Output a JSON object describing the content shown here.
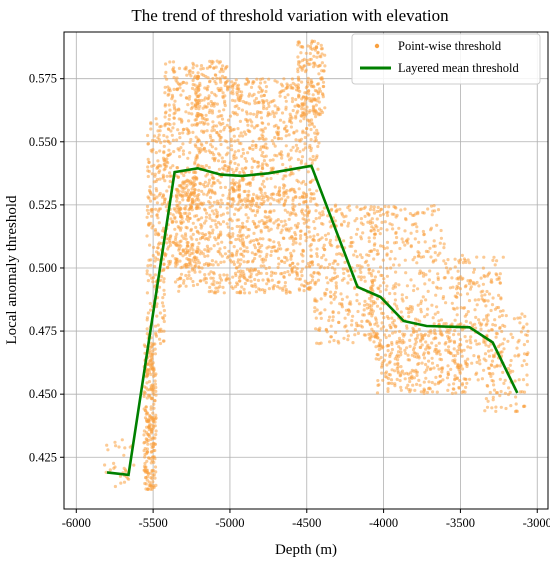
{
  "chart_data": {
    "type": "scatter",
    "title": "The trend of threshold variation with elevation",
    "xlabel": "Depth (m)",
    "ylabel": "Local anomaly threshold",
    "xlim": [
      -6080,
      -2930
    ],
    "ylim": [
      0.4045,
      0.5935
    ],
    "x_ticks": [
      -6000,
      -5500,
      -5000,
      -4500,
      -4000,
      -3500,
      -3000
    ],
    "x_tick_labels": [
      "-6000",
      "-5500",
      "-5000",
      "-4500",
      "-4000",
      "-3500",
      "-3000"
    ],
    "y_ticks": [
      0.425,
      0.45,
      0.475,
      0.5,
      0.525,
      0.55,
      0.575
    ],
    "y_tick_labels": [
      "0.425",
      "0.450",
      "0.475",
      "0.500",
      "0.525",
      "0.550",
      "0.575"
    ],
    "grid": true,
    "legend_position": "top-right",
    "colors": {
      "scatter": "#f9a03f",
      "line": "#008000",
      "grid": "#b0b0b0"
    },
    "series": [
      {
        "name": "Layered mean threshold",
        "kind": "line",
        "x": [
          -5800,
          -5660,
          -5360,
          -5210,
          -5060,
          -4920,
          -4750,
          -4470,
          -4170,
          -4020,
          -3870,
          -3720,
          -3440,
          -3290,
          -3130
        ],
        "y": [
          0.419,
          0.418,
          0.538,
          0.5395,
          0.537,
          0.5365,
          0.5375,
          0.5405,
          0.4925,
          0.4885,
          0.479,
          0.477,
          0.4765,
          0.4705,
          0.4505
        ]
      },
      {
        "name": "Point-wise threshold",
        "kind": "scatter",
        "clusters": [
          {
            "x": [
              -5840,
              -5620
            ],
            "y": [
              0.413,
              0.432
            ],
            "n": 30
          },
          {
            "x": [
              -5560,
              -5480
            ],
            "y": [
              0.412,
              0.47
            ],
            "n": 260
          },
          {
            "x": [
              -5540,
              -5420
            ],
            "y": [
              0.47,
              0.56
            ],
            "n": 220
          },
          {
            "x": [
              -5430,
              -5200
            ],
            "y": [
              0.5,
              0.582
            ],
            "n": 380
          },
          {
            "x": [
              -5230,
              -5010
            ],
            "y": [
              0.535,
              0.582
            ],
            "n": 250
          },
          {
            "x": [
              -5360,
              -4920
            ],
            "y": [
              0.49,
              0.535
            ],
            "n": 420
          },
          {
            "x": [
              -5010,
              -4780
            ],
            "y": [
              0.525,
              0.575
            ],
            "n": 230
          },
          {
            "x": [
              -4920,
              -4450
            ],
            "y": [
              0.49,
              0.53
            ],
            "n": 400
          },
          {
            "x": [
              -4800,
              -4420
            ],
            "y": [
              0.525,
              0.575
            ],
            "n": 320
          },
          {
            "x": [
              -4560,
              -4380
            ],
            "y": [
              0.56,
              0.59
            ],
            "n": 150
          },
          {
            "x": [
              -4450,
              -4050
            ],
            "y": [
              0.47,
              0.525
            ],
            "n": 320
          },
          {
            "x": [
              -4100,
              -3600
            ],
            "y": [
              0.465,
              0.525
            ],
            "n": 350
          },
          {
            "x": [
              -4050,
              -3450
            ],
            "y": [
              0.45,
              0.478
            ],
            "n": 280
          },
          {
            "x": [
              -3600,
              -3220
            ],
            "y": [
              0.455,
              0.505
            ],
            "n": 230
          },
          {
            "x": [
              -3350,
              -3060
            ],
            "y": [
              0.443,
              0.482
            ],
            "n": 120
          }
        ]
      }
    ]
  }
}
